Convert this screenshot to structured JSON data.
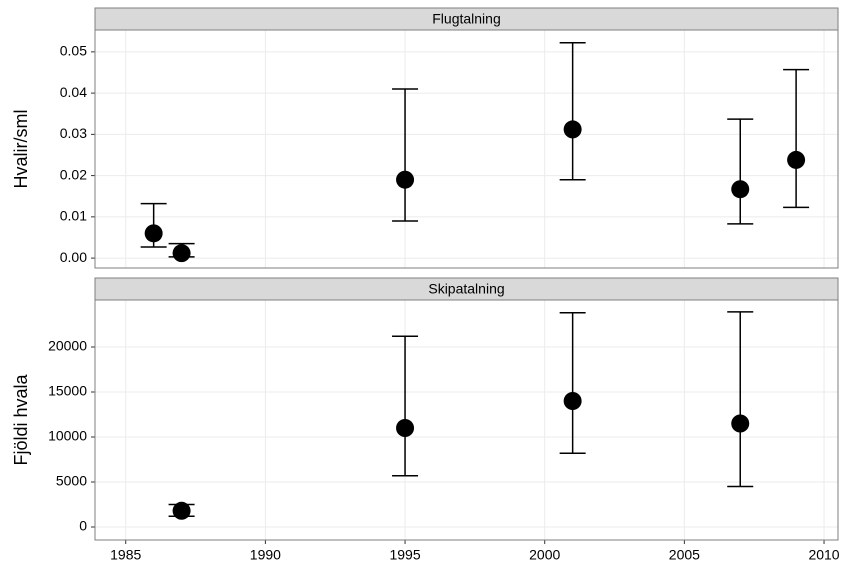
{
  "chart_data": [
    {
      "type": "scatter",
      "title": "Flugtalning",
      "y_label": "Hvalir/sml",
      "x": [
        1986,
        1987,
        1995,
        2001,
        2007,
        2009
      ],
      "values": [
        0.006,
        0.0012,
        0.019,
        0.0312,
        0.0167,
        0.0238
      ],
      "lower": [
        0.0027,
        0.0003,
        0.009,
        0.019,
        0.0083,
        0.0123
      ],
      "upper": [
        0.0132,
        0.0035,
        0.041,
        0.0522,
        0.0337,
        0.0457
      ],
      "xlim": [
        1983.9,
        2010.5
      ],
      "xticks": [
        1985,
        1990,
        1995,
        2000,
        2005,
        2010
      ],
      "ylim": [
        -0.0024,
        0.0553
      ],
      "yticks": [
        {
          "value": 0,
          "label": "0.00"
        },
        {
          "value": 0.01,
          "label": "0.01"
        },
        {
          "value": 0.02,
          "label": "0.02"
        },
        {
          "value": 0.03,
          "label": "0.03"
        },
        {
          "value": 0.04,
          "label": "0.04"
        },
        {
          "value": 0.05,
          "label": "0.05"
        }
      ],
      "color": "#000000",
      "grid": true
    },
    {
      "type": "scatter",
      "title": "Skipatalning",
      "y_label": "Fjöldi hvala",
      "x": [
        1987,
        1995,
        2001,
        2007
      ],
      "values": [
        1800,
        11000,
        14000,
        11500
      ],
      "lower": [
        1200,
        5700,
        8200,
        4500
      ],
      "upper": [
        2500,
        21200,
        23800,
        23900
      ],
      "xlim": [
        1983.9,
        2010.5
      ],
      "xticks": [
        1985,
        1990,
        1995,
        2000,
        2005,
        2010
      ],
      "ylim": [
        -1444,
        25222
      ],
      "yticks": [
        0,
        5000,
        10000,
        15000,
        20000
      ],
      "color": "#000000",
      "grid": true
    }
  ]
}
